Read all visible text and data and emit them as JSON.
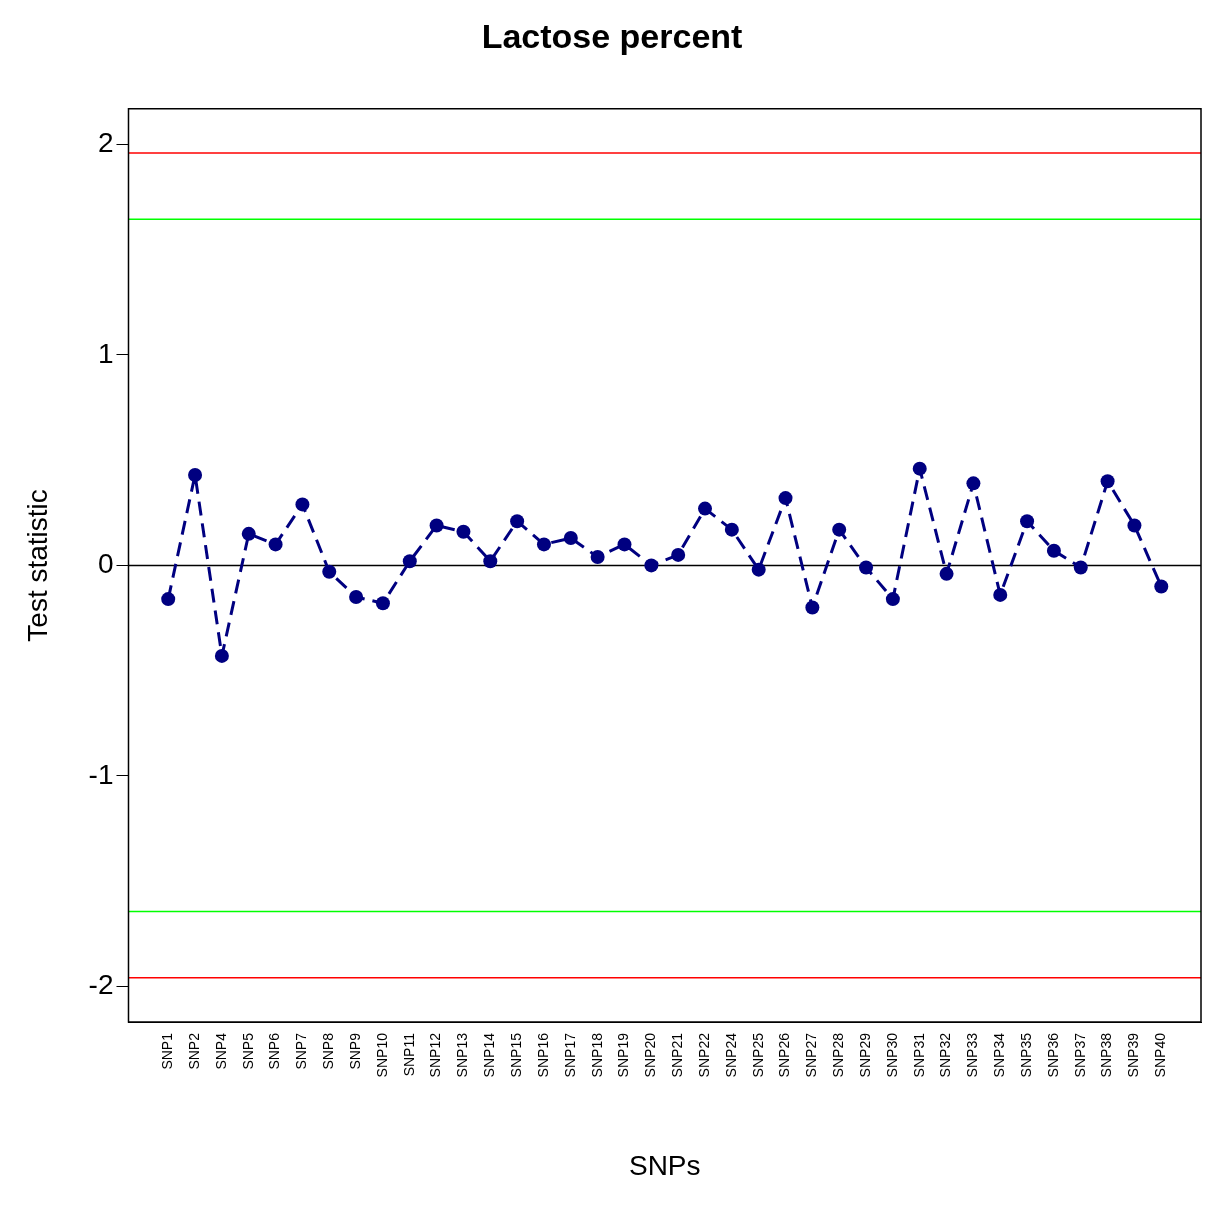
{
  "chart_data": {
    "type": "line",
    "title": "Lactose percent",
    "xlabel": "SNPs",
    "ylabel": "Test statistic",
    "categories": [
      "SNP1",
      "SNP2",
      "SNP4",
      "SNP5",
      "SNP6",
      "SNP7",
      "SNP8",
      "SNP9",
      "SNP10",
      "SNP11",
      "SNP12",
      "SNP13",
      "SNP14",
      "SNP15",
      "SNP16",
      "SNP17",
      "SNP18",
      "SNP19",
      "SNP20",
      "SNP21",
      "SNP22",
      "SNP24",
      "SNP25",
      "SNP26",
      "SNP27",
      "SNP28",
      "SNP29",
      "SNP30",
      "SNP31",
      "SNP32",
      "SNP33",
      "SNP34",
      "SNP35",
      "SNP36",
      "SNP37",
      "SNP38",
      "SNP39",
      "SNP40"
    ],
    "series": [
      {
        "color": "#000080",
        "values": [
          -0.16,
          0.43,
          -0.43,
          0.15,
          0.1,
          0.29,
          -0.03,
          -0.15,
          -0.18,
          0.02,
          0.19,
          0.16,
          0.02,
          0.21,
          0.1,
          0.13,
          0.04,
          0.1,
          0.0,
          0.05,
          0.27,
          0.17,
          -0.02,
          0.32,
          -0.2,
          0.17,
          -0.01,
          -0.16,
          0.46,
          -0.04,
          0.39,
          -0.14,
          0.21,
          0.07,
          -0.01,
          0.4,
          0.19,
          -0.1
        ]
      }
    ],
    "ylim": [
      -2.17,
      2.17
    ],
    "yticks": [
      -2,
      -1,
      0,
      1,
      2
    ],
    "grid": false,
    "legend": false,
    "marker": "circle",
    "line_style": "dashed",
    "ref_lines": [
      {
        "axis": "y",
        "value": 1.96,
        "color": "#ff0000"
      },
      {
        "axis": "y",
        "value": 1.645,
        "color": "#00ff00"
      },
      {
        "axis": "y",
        "value": 0,
        "color": "#000000"
      },
      {
        "axis": "y",
        "value": -1.645,
        "color": "#00ff00"
      },
      {
        "axis": "y",
        "value": -1.96,
        "color": "#ff0000"
      }
    ]
  }
}
